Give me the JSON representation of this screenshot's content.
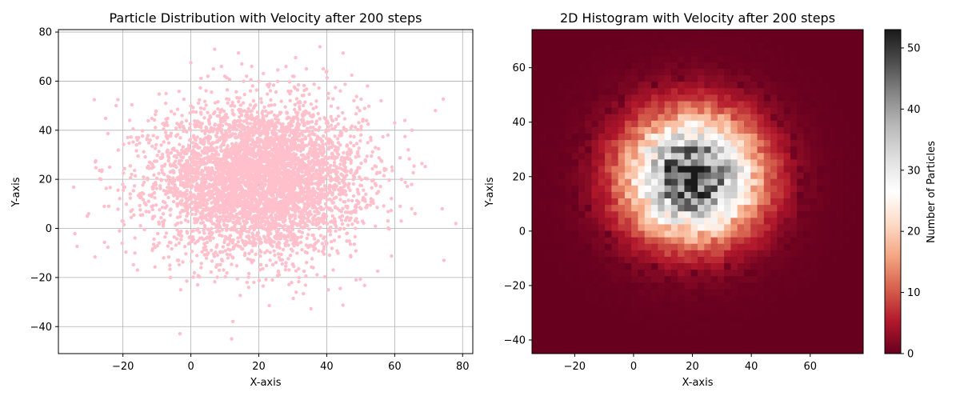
{
  "chart_data": [
    {
      "type": "scatter",
      "title": "Particle Distribution with Velocity after 200 steps",
      "xlabel": "X-axis",
      "ylabel": "Y-axis",
      "xlim": [
        -39,
        83
      ],
      "ylim": [
        -51,
        81
      ],
      "xticks": [
        -20,
        0,
        20,
        40,
        60,
        80
      ],
      "yticks": [
        -40,
        -20,
        0,
        20,
        40,
        60,
        80
      ],
      "xtick_labels": [
        "−20",
        "0",
        "20",
        "40",
        "60",
        "80"
      ],
      "ytick_labels": [
        "−40",
        "−20",
        "0",
        "20",
        "40",
        "60",
        "80"
      ],
      "grid": true,
      "marker_color": "#ffc0cb",
      "distribution": {
        "center": [
          20,
          20
        ],
        "spread": 15,
        "count": 5000
      },
      "points": [
        [
          -34.5,
          16.8
        ],
        [
          -33.5,
          -7.3
        ],
        [
          -30.5,
          5
        ],
        [
          -28,
          27.5
        ],
        [
          -26.5,
          20
        ],
        [
          -25.5,
          9
        ],
        [
          -22,
          50
        ],
        [
          -21.5,
          52.5
        ],
        [
          -21,
          -1
        ],
        [
          -20,
          3
        ],
        [
          -17,
          40.5
        ],
        [
          -16,
          34
        ],
        [
          -12,
          36
        ],
        [
          -8,
          -12
        ],
        [
          -6,
          -20
        ],
        [
          -3,
          -25
        ],
        [
          0,
          67.5
        ],
        [
          2,
          -23
        ],
        [
          3,
          -16
        ],
        [
          5,
          62
        ],
        [
          7,
          73
        ],
        [
          9,
          66
        ],
        [
          10,
          62
        ],
        [
          12,
          -45
        ],
        [
          14,
          71.5
        ],
        [
          15,
          67
        ],
        [
          17,
          -24
        ],
        [
          20,
          60
        ],
        [
          24,
          -21
        ],
        [
          28,
          66
        ],
        [
          30,
          62
        ],
        [
          31,
          -26
        ],
        [
          34,
          65
        ],
        [
          36,
          -16
        ],
        [
          38,
          74
        ],
        [
          39,
          65
        ],
        [
          40,
          64
        ],
        [
          44,
          56
        ],
        [
          48,
          52
        ],
        [
          52,
          58
        ],
        [
          56,
          52
        ],
        [
          58,
          38
        ],
        [
          60,
          43
        ],
        [
          62,
          20
        ],
        [
          63,
          44
        ],
        [
          64,
          32
        ],
        [
          65,
          8
        ],
        [
          66,
          6
        ],
        [
          72,
          48
        ],
        [
          74,
          8
        ],
        [
          74.5,
          -13
        ],
        [
          78,
          2
        ]
      ]
    },
    {
      "type": "heatmap",
      "title": "2D Histogram with Velocity after 200 steps",
      "xlabel": "X-axis",
      "ylabel": "Y-axis",
      "xlim": [
        -34.5,
        78
      ],
      "ylim": [
        -45,
        74
      ],
      "xticks": [
        -20,
        0,
        20,
        40,
        60
      ],
      "yticks": [
        -40,
        -20,
        0,
        20,
        40,
        60
      ],
      "xtick_labels": [
        "−20",
        "0",
        "20",
        "40",
        "60"
      ],
      "ytick_labels": [
        "−40",
        "−20",
        "0",
        "20",
        "40",
        "60"
      ],
      "bins": 50,
      "colormap": "RdGy",
      "colorbar_label": "Number of Particles",
      "colorbar_range": [
        0,
        53
      ],
      "colorbar_ticks": [
        0,
        10,
        20,
        30,
        40,
        50
      ],
      "colorbar_tick_labels": [
        "0",
        "10",
        "20",
        "30",
        "40",
        "50"
      ],
      "colormap_stops": [
        "#67001f",
        "#b2182b",
        "#d6604d",
        "#f4a582",
        "#fddbc7",
        "#ffffff",
        "#e0e0e0",
        "#bababa",
        "#878787",
        "#4d4d4d",
        "#1a1a1a"
      ],
      "distribution": {
        "center": [
          20,
          20
        ],
        "spread": 15,
        "peak": 52
      }
    }
  ]
}
